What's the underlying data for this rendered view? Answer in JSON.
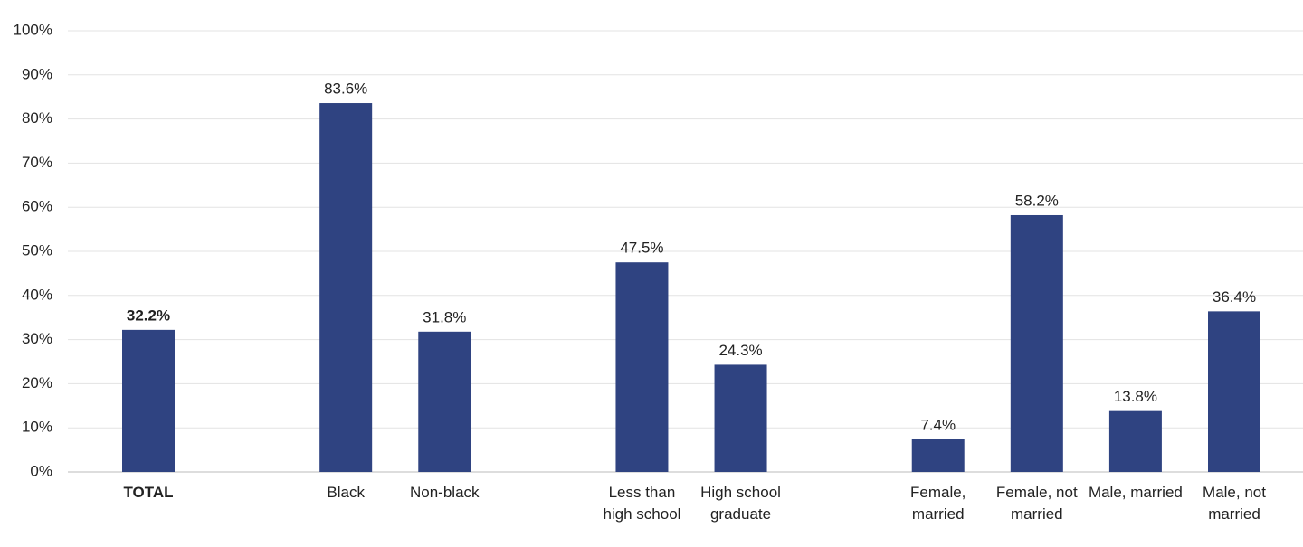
{
  "chart_data": {
    "type": "bar",
    "categories": [
      "TOTAL",
      null,
      "Black",
      "Non-black",
      null,
      "Less than high school",
      "High school graduate",
      null,
      "Female, married",
      "Female, not married",
      "Male, married",
      "Male, not married"
    ],
    "values": [
      32.2,
      null,
      83.6,
      31.8,
      null,
      47.5,
      24.3,
      null,
      7.4,
      58.2,
      13.8,
      36.4
    ],
    "value_labels": [
      "32.2%",
      null,
      "83.6%",
      "31.8%",
      null,
      "47.5%",
      "24.3%",
      null,
      "7.4%",
      "58.2%",
      "13.8%",
      "36.4%"
    ],
    "color": "#2f4381",
    "ylim": [
      0,
      100
    ],
    "yticks": [
      {
        "value": 0,
        "label": "0%"
      },
      {
        "value": 10,
        "label": "10%"
      },
      {
        "value": 20,
        "label": "20%"
      },
      {
        "value": 30,
        "label": "30%"
      },
      {
        "value": 40,
        "label": "40%"
      },
      {
        "value": 50,
        "label": "50%"
      },
      {
        "value": 60,
        "label": "60%"
      },
      {
        "value": 70,
        "label": "70%"
      },
      {
        "value": 80,
        "label": "80%"
      },
      {
        "value": 90,
        "label": "90%"
      },
      {
        "value": 100,
        "label": "100%"
      }
    ],
    "grid": true
  }
}
